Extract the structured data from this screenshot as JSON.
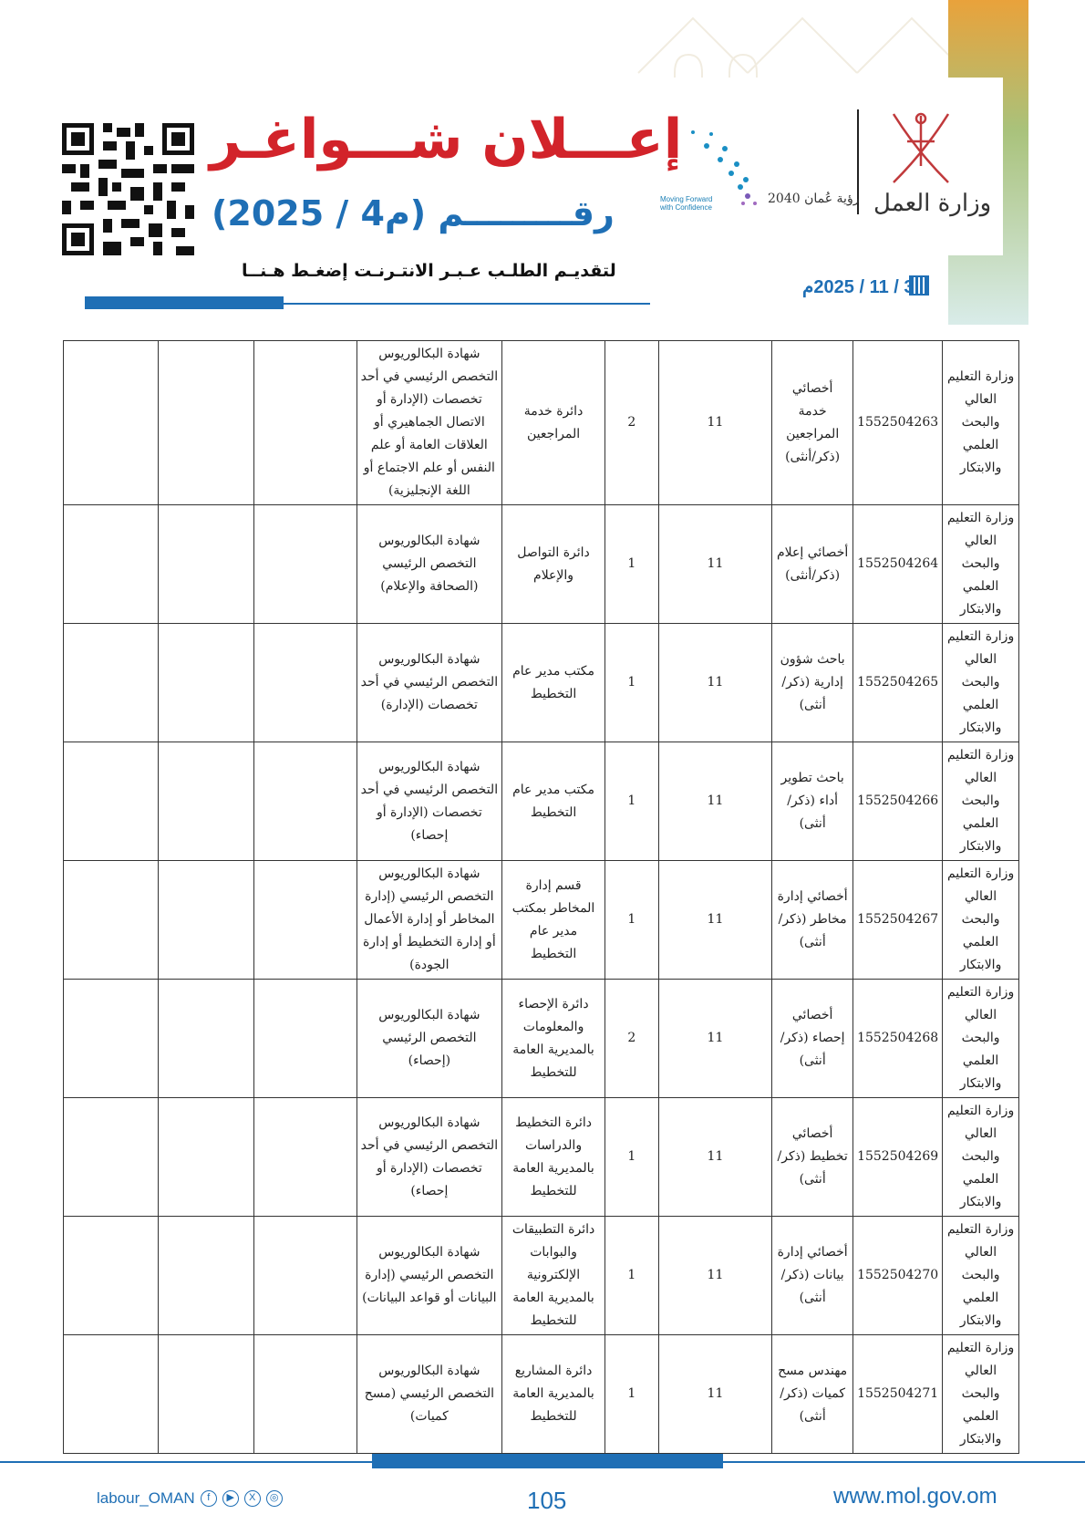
{
  "header": {
    "ministry": "وزارة العمل",
    "vision": "رؤية عُمان 2040",
    "vision_tagline": "Moving Forward with Confidence",
    "title": "إعـــلان شـــواغـر",
    "number": "رقـــــــــم (م4 / 2025)",
    "apply_link": "لتقديـم الطلـب عـبـر الانتـرنـت إضغـط هـنــا",
    "date": "3 / 11 / 2025م",
    "calendar_icon": "calendar-icon"
  },
  "colors": {
    "title": "#d2232a",
    "accent": "#1f6fb5"
  },
  "table": {
    "rows": [
      {
        "org": "وزارة التعليم العالي والبحث العلمي والابتكار",
        "code": "1552504263",
        "title": "أخصائي خدمة المراجعين (ذكر/أنثى)",
        "grade": "11",
        "count": "2",
        "dept": "دائرة خدمة المراجعين",
        "qual": "شهادة البكالوريوس التخصص الرئيسي في أحد تخصصات (الإدارة أو الاتصال الجماهيري أو العلاقات العامة أو علم النفس أو علم الاجتماع أو اللغة الإنجليزية)"
      },
      {
        "org": "وزارة التعليم العالي والبحث العلمي والابتكار",
        "code": "1552504264",
        "title": "أخصائي إعلام (ذكر/أنثى)",
        "grade": "11",
        "count": "1",
        "dept": "دائرة التواصل والإعلام",
        "qual": "شهادة البكالوريوس التخصص الرئيسي (الصحافة والإعلام)"
      },
      {
        "org": "وزارة التعليم العالي والبحث العلمي والابتكار",
        "code": "1552504265",
        "title": "باحث شؤون إدارية (ذكر/ أنثى)",
        "grade": "11",
        "count": "1",
        "dept": "مكتب مدير عام التخطيط",
        "qual": "شهادة البكالوريوس التخصص الرئيسي في أحد تخصصات (الإدارة)"
      },
      {
        "org": "وزارة التعليم العالي والبحث العلمي والابتكار",
        "code": "1552504266",
        "title": "باحث تطوير أداء (ذكر/ أنثى)",
        "grade": "11",
        "count": "1",
        "dept": "مكتب مدير عام التخطيط",
        "qual": "شهادة البكالوريوس التخصص الرئيسي في أحد تخصصات (الإدارة أو إحصاء)"
      },
      {
        "org": "وزارة التعليم العالي والبحث العلمي والابتكار",
        "code": "1552504267",
        "title": "أخصائي إدارة مخاطر (ذكر/ أنثى)",
        "grade": "11",
        "count": "1",
        "dept": "قسم إدارة المخاطر بمكتب مدير عام التخطيط",
        "qual": "شهادة البكالوريوس التخصص الرئيسي (إدارة المخاطر أو إدارة الأعمال أو إدارة التخطيط أو إدارة الجودة)"
      },
      {
        "org": "وزارة التعليم العالي والبحث العلمي والابتكار",
        "code": "1552504268",
        "title": "أخصائي إحصاء (ذكر/أنثى)",
        "grade": "11",
        "count": "2",
        "dept": "دائرة الإحصاء والمعلومات بالمديرية العامة للتخطيط",
        "qual": "شهادة البكالوريوس التخصص الرئيسي (إحصاء)"
      },
      {
        "org": "وزارة التعليم العالي والبحث العلمي والابتكار",
        "code": "1552504269",
        "title": "أخصائي تخطيط (ذكر/ أنثى)",
        "grade": "11",
        "count": "1",
        "dept": "دائرة التخطيط والدراسات بالمديرية العامة للتخطيط",
        "qual": "شهادة البكالوريوس التخصص الرئيسي في أحد تخصصات (الإدارة أو إحصاء)"
      },
      {
        "org": "وزارة التعليم العالي والبحث العلمي والابتكار",
        "code": "1552504270",
        "title": "أخصائي إدارة بيانات (ذكر/ أنثى)",
        "grade": "11",
        "count": "1",
        "dept": "دائرة التطبيقات والبوابات الإلكترونية بالمديرية العامة للتخطيط",
        "qual": "شهادة البكالوريوس التخصص الرئيسي (إدارة البيانات أو قواعد البيانات)"
      },
      {
        "org": "وزارة التعليم العالي والبحث العلمي والابتكار",
        "code": "1552504271",
        "title": "مهندس مسح كميات (ذكر/ أنثى)",
        "grade": "11",
        "count": "1",
        "dept": "دائرة المشاريع بالمديرية العامة للتخطيط",
        "qual": "شهادة البكالوريوس التخصص الرئيسي (مسح كميات)"
      }
    ]
  },
  "footer": {
    "social_handle": "labour_OMAN",
    "page_number": "105",
    "website": "www.mol.gov.om"
  }
}
